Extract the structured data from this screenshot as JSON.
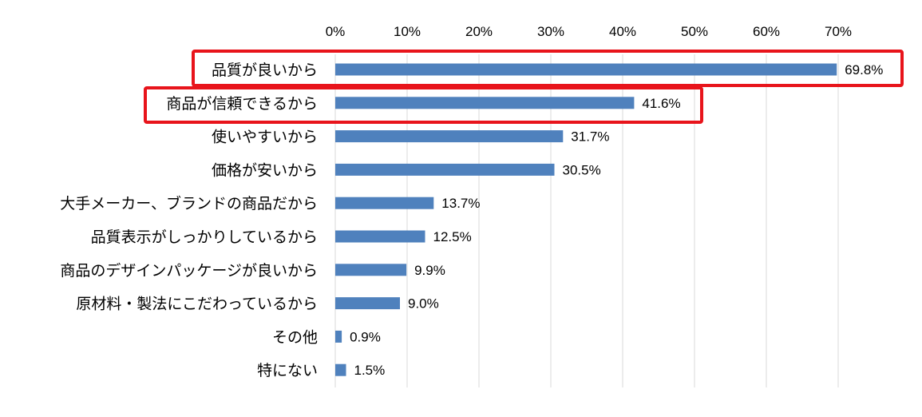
{
  "chart_data": {
    "type": "bar",
    "orientation": "horizontal",
    "categories": [
      "品質が良いから",
      "商品が信頼できるから",
      "使いやすいから",
      "価格が安いから",
      "大手メーカー、ブランドの商品だから",
      "品質表示がしっかりしているから",
      "商品のデザインパッケージが良いから",
      "原材料・製法にこだわっているから",
      "その他",
      "特にない"
    ],
    "values": [
      69.8,
      41.6,
      31.7,
      30.5,
      13.7,
      12.5,
      9.9,
      9.0,
      0.9,
      1.5
    ],
    "data_labels": [
      "69.8%",
      "41.6%",
      "31.7%",
      "30.5%",
      "13.7%",
      "12.5%",
      "9.9%",
      "9.0%",
      "0.9%",
      "1.5%"
    ],
    "xlim": [
      0,
      70
    ],
    "x_ticks": [
      "0%",
      "10%",
      "20%",
      "30%",
      "40%",
      "50%",
      "60%",
      "70%"
    ],
    "x_axis_position": "top",
    "grid": true,
    "bar_color": "#4f81bd",
    "grid_color": "#d9d9d9",
    "highlight_color": "#e8141b",
    "highlighted_categories": [
      "品質が良いから",
      "商品が信頼できるから"
    ]
  }
}
